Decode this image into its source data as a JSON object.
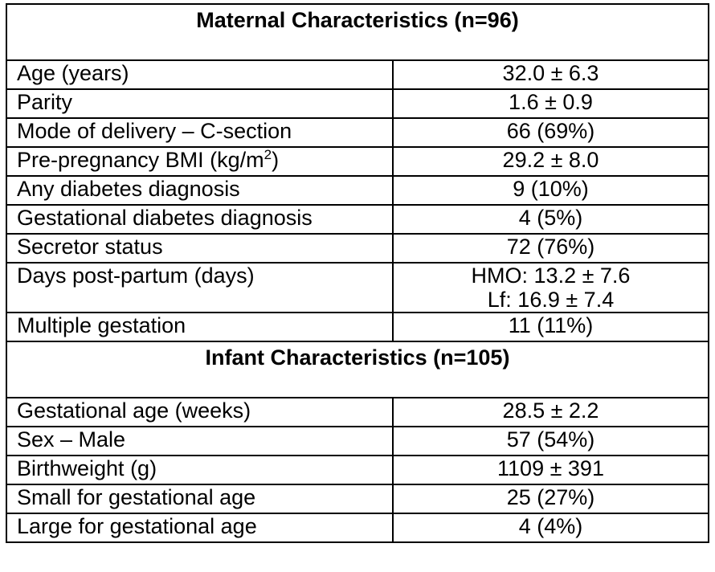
{
  "maternal": {
    "header": "Maternal Characteristics (n=96)",
    "rows": [
      {
        "label": "Age (years)",
        "value": "32.0 ± 6.3"
      },
      {
        "label": "Parity",
        "value": "1.6 ± 0.9"
      },
      {
        "label": "Mode of delivery – C-section",
        "value": "66 (69%)"
      },
      {
        "label_pre": "Pre-pregnancy BMI (kg/m",
        "label_sup": "2",
        "label_post": ")",
        "value": "29.2 ± 8.0"
      },
      {
        "label": "Any diabetes diagnosis",
        "value": "9 (10%)"
      },
      {
        "label": "Gestational diabetes diagnosis",
        "value": "4 (5%)"
      },
      {
        "label": "Secretor status",
        "value": "72 (76%)"
      },
      {
        "label": "Days post-partum (days)",
        "value_line1": "HMO: 13.2 ± 7.6",
        "value_line2": "Lf: 16.9 ± 7.4"
      },
      {
        "label": "Multiple gestation",
        "value": "11 (11%)"
      }
    ]
  },
  "infant": {
    "header": "Infant Characteristics (n=105)",
    "rows": [
      {
        "label": "Gestational age (weeks)",
        "value": "28.5 ± 2.2"
      },
      {
        "label": "Sex – Male",
        "value": "57 (54%)"
      },
      {
        "label": "Birthweight (g)",
        "value": "1109 ± 391"
      },
      {
        "label": "Small for gestational age",
        "value": "25 (27%)"
      },
      {
        "label": "Large for gestational age",
        "value": "4 (4%)"
      }
    ]
  }
}
